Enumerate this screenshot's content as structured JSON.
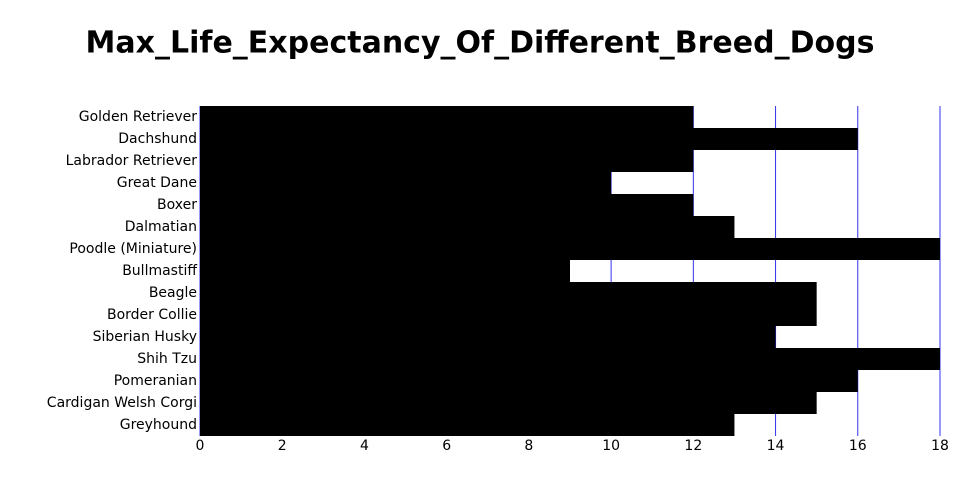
{
  "chart_data": {
    "type": "barh",
    "title": "Max_Life_Expectancy_Of_Different_Breed_Dogs",
    "categories": [
      "Golden Retriever",
      "Dachshund",
      "Labrador Retriever",
      "Great Dane",
      "Boxer",
      "Dalmatian",
      "Poodle (Miniature)",
      "Bullmastiff",
      "Beagle",
      "Border Collie",
      "Siberian Husky",
      "Shih Tzu",
      "Pomeranian",
      "Cardigan Welsh Corgi",
      "Greyhound"
    ],
    "values": [
      12,
      16,
      12,
      10,
      12,
      13,
      18,
      9,
      15,
      15,
      14,
      18,
      16,
      15,
      13
    ],
    "color": "#000000",
    "grid_color": "#3333ee",
    "xlim": [
      0,
      18
    ],
    "xticks": [
      0,
      2,
      4,
      6,
      8,
      10,
      12,
      14,
      16,
      18
    ],
    "grid": true
  }
}
